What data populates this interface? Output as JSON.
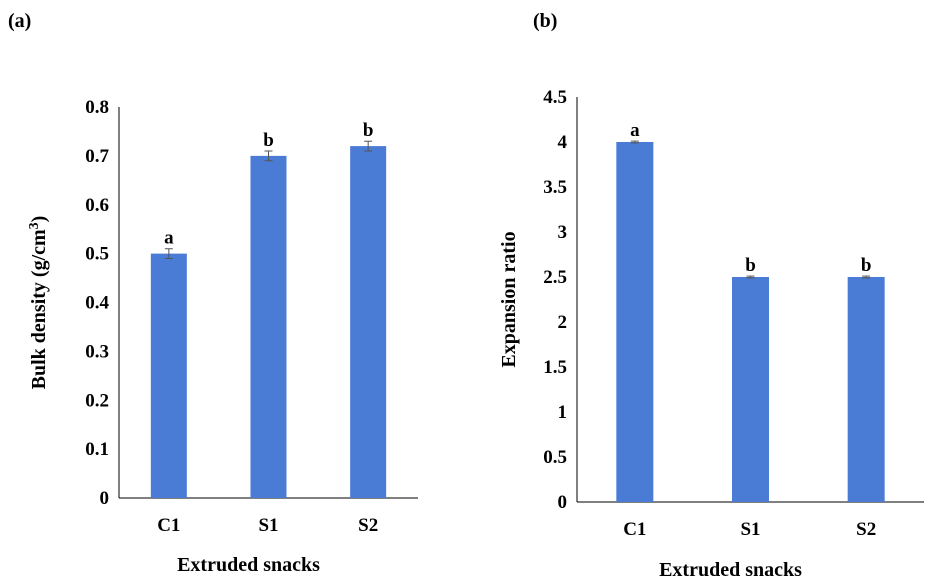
{
  "chart_data": [
    {
      "type": "bar",
      "panel_label": "(a)",
      "categories": [
        "C1",
        "S1",
        "S2"
      ],
      "values": [
        0.5,
        0.7,
        0.72
      ],
      "errors": [
        0.01,
        0.01,
        0.01
      ],
      "significance": [
        "a",
        "b",
        "b"
      ],
      "xlabel": "Extruded  snacks",
      "ylabel": "Bulk density (g/cm",
      "ylabel_sup": "3",
      "ylabel_close": ")",
      "ylim": [
        0,
        0.8
      ],
      "yticks": [
        "0",
        "0.1",
        "0.2",
        "0.3",
        "0.4",
        "0.5",
        "0.6",
        "0.7",
        "0.8"
      ],
      "grid": false,
      "bar_color": "#4a7bd5"
    },
    {
      "type": "bar",
      "panel_label": "(b)",
      "categories": [
        "C1",
        "S1",
        "S2"
      ],
      "values": [
        4.0,
        2.5,
        2.5
      ],
      "errors": [
        0.01,
        0.01,
        0.01
      ],
      "significance": [
        "a",
        "b",
        "b"
      ],
      "xlabel": "Extruded snacks",
      "ylabel": "Expansion ratio",
      "ylim": [
        0,
        4.5
      ],
      "yticks": [
        "0",
        "0.5",
        "1",
        "1.5",
        "2",
        "2.5",
        "3",
        "3.5",
        "4",
        "4.5"
      ],
      "grid": false,
      "bar_color": "#4a7bd5"
    }
  ]
}
